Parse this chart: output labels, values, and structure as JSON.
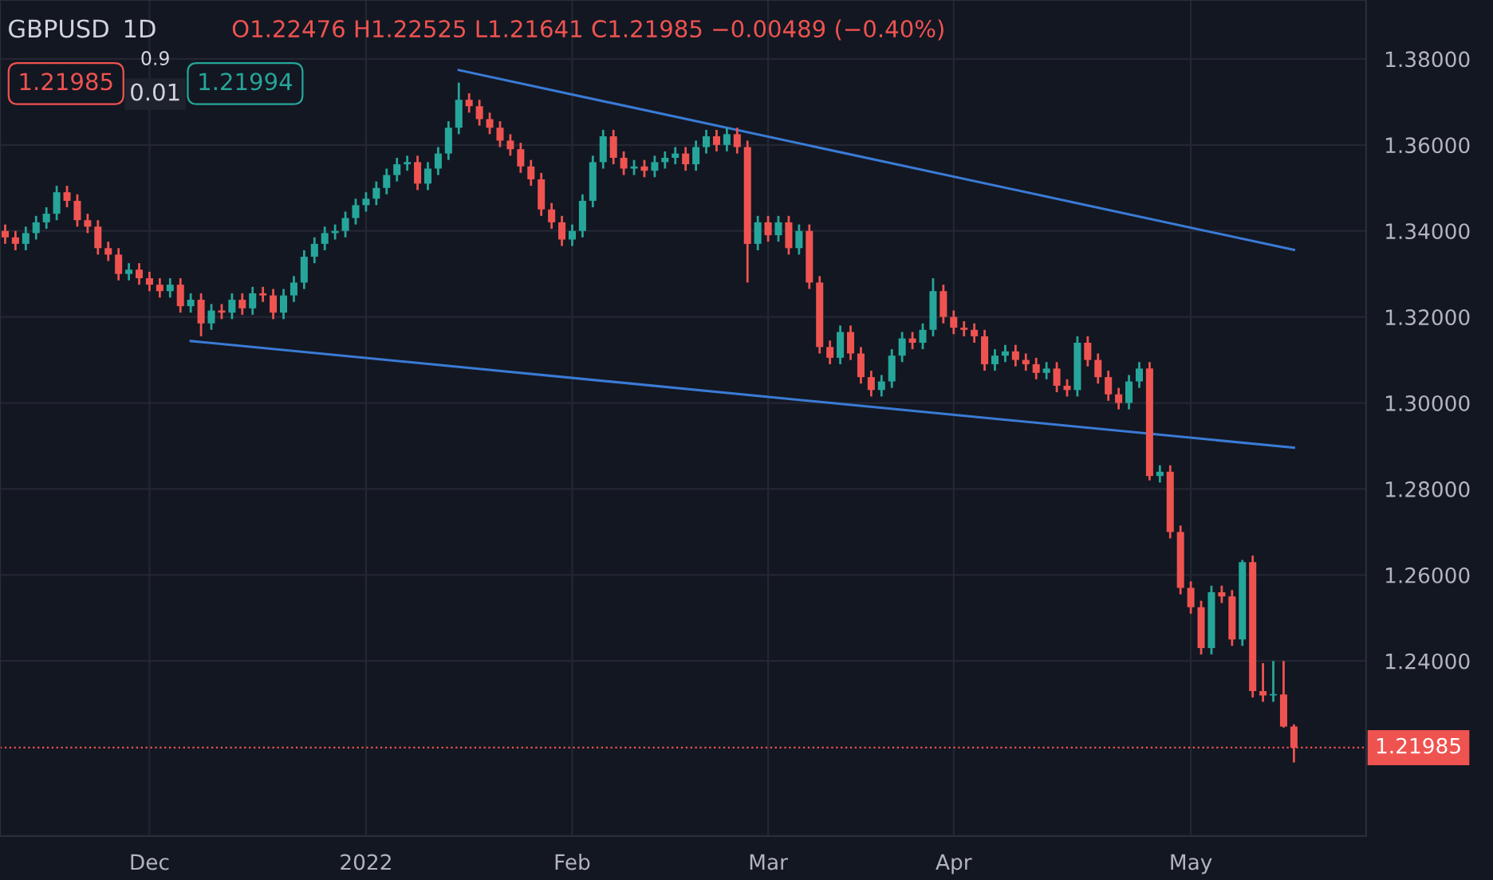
{
  "chart_data": {
    "type": "candlestick",
    "title": "GBPUSD",
    "subtitle": "1D",
    "annotations": [
      "O1.22476 H1.22525 L1.21641 C1.21985 −0.00489 (−0.40%)",
      "1.21985",
      "0.9",
      "0.01",
      "1.21994"
    ],
    "categories": [
      null,
      null,
      null,
      null,
      null,
      null,
      null,
      null,
      null,
      null,
      null,
      null,
      null,
      null,
      "Dec",
      null,
      null,
      null,
      null,
      null,
      null,
      null,
      null,
      null,
      null,
      null,
      null,
      null,
      null,
      null,
      null,
      null,
      null,
      null,
      null,
      "2022",
      null,
      null,
      null,
      null,
      null,
      null,
      null,
      null,
      null,
      null,
      null,
      null,
      null,
      null,
      null,
      null,
      null,
      null,
      null,
      "Feb",
      null,
      null,
      null,
      null,
      null,
      null,
      null,
      null,
      null,
      null,
      null,
      null,
      null,
      null,
      null,
      null,
      null,
      null,
      "Mar",
      null,
      null,
      null,
      null,
      null,
      null,
      null,
      null,
      null,
      null,
      null,
      null,
      null,
      null,
      null,
      null,
      null,
      "Apr",
      null,
      null,
      null,
      null,
      null,
      null,
      null,
      null,
      null,
      null,
      null,
      null,
      null,
      null,
      null,
      null,
      null,
      null,
      null,
      null,
      null,
      null,
      "May",
      null,
      null,
      null,
      null,
      null,
      null,
      null,
      null,
      null,
      null
    ],
    "ohlc": [
      [
        1.34,
        1.3415,
        1.337,
        1.3385
      ],
      [
        1.3385,
        1.34,
        1.3355,
        1.337
      ],
      [
        1.337,
        1.341,
        1.3355,
        1.3395
      ],
      [
        1.3395,
        1.3435,
        1.338,
        1.342
      ],
      [
        1.342,
        1.3455,
        1.3405,
        1.344
      ],
      [
        1.344,
        1.3505,
        1.3425,
        1.349
      ],
      [
        1.349,
        1.3505,
        1.3455,
        1.347
      ],
      [
        1.347,
        1.3485,
        1.341,
        1.3425
      ],
      [
        1.3425,
        1.344,
        1.3395,
        1.341
      ],
      [
        1.341,
        1.3425,
        1.3345,
        1.336
      ],
      [
        1.336,
        1.3375,
        1.333,
        1.3345
      ],
      [
        1.3345,
        1.336,
        1.3285,
        1.33
      ],
      [
        1.33,
        1.3325,
        1.3285,
        1.331
      ],
      [
        1.331,
        1.3325,
        1.3275,
        1.329
      ],
      [
        1.329,
        1.3305,
        1.326,
        1.3275
      ],
      [
        1.3275,
        1.329,
        1.3245,
        1.326
      ],
      [
        1.326,
        1.329,
        1.3245,
        1.3275
      ],
      [
        1.3275,
        1.329,
        1.321,
        1.3225
      ],
      [
        1.3225,
        1.3255,
        1.321,
        1.324
      ],
      [
        1.324,
        1.3255,
        1.3155,
        1.3185
      ],
      [
        1.3185,
        1.323,
        1.317,
        1.3215
      ],
      [
        1.3215,
        1.323,
        1.3195,
        1.321
      ],
      [
        1.321,
        1.3255,
        1.3195,
        1.324
      ],
      [
        1.324,
        1.3255,
        1.3205,
        1.322
      ],
      [
        1.322,
        1.327,
        1.3205,
        1.3255
      ],
      [
        1.3255,
        1.327,
        1.3235,
        1.325
      ],
      [
        1.325,
        1.3265,
        1.3195,
        1.321
      ],
      [
        1.321,
        1.3265,
        1.3195,
        1.325
      ],
      [
        1.325,
        1.3295,
        1.3235,
        1.328
      ],
      [
        1.328,
        1.3355,
        1.3265,
        1.334
      ],
      [
        1.334,
        1.3385,
        1.3325,
        1.337
      ],
      [
        1.337,
        1.341,
        1.3355,
        1.3395
      ],
      [
        1.3395,
        1.3415,
        1.338,
        1.34
      ],
      [
        1.34,
        1.3445,
        1.3385,
        1.343
      ],
      [
        1.343,
        1.3475,
        1.3415,
        1.346
      ],
      [
        1.346,
        1.349,
        1.3445,
        1.3475
      ],
      [
        1.3475,
        1.3515,
        1.346,
        1.35
      ],
      [
        1.35,
        1.3545,
        1.3485,
        1.353
      ],
      [
        1.353,
        1.357,
        1.3515,
        1.3555
      ],
      [
        1.3555,
        1.3575,
        1.354,
        1.356
      ],
      [
        1.356,
        1.3575,
        1.3495,
        1.351
      ],
      [
        1.351,
        1.356,
        1.3495,
        1.3545
      ],
      [
        1.3545,
        1.3595,
        1.353,
        1.358
      ],
      [
        1.358,
        1.3655,
        1.3565,
        1.364
      ],
      [
        1.364,
        1.3745,
        1.3625,
        1.3705
      ],
      [
        1.3705,
        1.372,
        1.3675,
        1.369
      ],
      [
        1.369,
        1.3705,
        1.3645,
        1.366
      ],
      [
        1.366,
        1.3675,
        1.3625,
        1.364
      ],
      [
        1.364,
        1.3655,
        1.3595,
        1.361
      ],
      [
        1.361,
        1.3625,
        1.3575,
        1.359
      ],
      [
        1.359,
        1.3605,
        1.3535,
        1.355
      ],
      [
        1.355,
        1.3565,
        1.3505,
        1.352
      ],
      [
        1.352,
        1.3535,
        1.3435,
        1.345
      ],
      [
        1.345,
        1.3465,
        1.3405,
        1.342
      ],
      [
        1.342,
        1.3435,
        1.3365,
        1.338
      ],
      [
        1.338,
        1.3415,
        1.3365,
        1.34
      ],
      [
        1.34,
        1.3485,
        1.3385,
        1.347
      ],
      [
        1.347,
        1.3575,
        1.3455,
        1.356
      ],
      [
        1.356,
        1.3635,
        1.3545,
        1.362
      ],
      [
        1.362,
        1.3635,
        1.3555,
        1.357
      ],
      [
        1.357,
        1.3585,
        1.353,
        1.3545
      ],
      [
        1.3545,
        1.3565,
        1.353,
        1.355
      ],
      [
        1.355,
        1.3565,
        1.3525,
        1.354
      ],
      [
        1.354,
        1.3575,
        1.3525,
        1.356
      ],
      [
        1.356,
        1.3585,
        1.3545,
        1.357
      ],
      [
        1.357,
        1.3595,
        1.3555,
        1.358
      ],
      [
        1.358,
        1.3595,
        1.354,
        1.3555
      ],
      [
        1.3555,
        1.361,
        1.354,
        1.3595
      ],
      [
        1.3595,
        1.3635,
        1.358,
        1.362
      ],
      [
        1.362,
        1.3635,
        1.3585,
        1.36
      ],
      [
        1.36,
        1.364,
        1.3585,
        1.3625
      ],
      [
        1.3625,
        1.364,
        1.358,
        1.3595
      ],
      [
        1.3595,
        1.361,
        1.328,
        1.337
      ],
      [
        1.337,
        1.3435,
        1.3355,
        1.342
      ],
      [
        1.342,
        1.3435,
        1.3375,
        1.339
      ],
      [
        1.339,
        1.3435,
        1.3375,
        1.342
      ],
      [
        1.342,
        1.3435,
        1.3345,
        1.336
      ],
      [
        1.336,
        1.3415,
        1.3345,
        1.34
      ],
      [
        1.34,
        1.3415,
        1.3265,
        1.328
      ],
      [
        1.328,
        1.3295,
        1.3115,
        1.313
      ],
      [
        1.313,
        1.3145,
        1.309,
        1.3105
      ],
      [
        1.3105,
        1.318,
        1.309,
        1.3165
      ],
      [
        1.3165,
        1.318,
        1.31,
        1.3115
      ],
      [
        1.3115,
        1.313,
        1.3045,
        1.306
      ],
      [
        1.306,
        1.3075,
        1.3015,
        1.303
      ],
      [
        1.303,
        1.3065,
        1.3015,
        1.305
      ],
      [
        1.305,
        1.3125,
        1.3035,
        1.311
      ],
      [
        1.311,
        1.3165,
        1.3095,
        1.315
      ],
      [
        1.315,
        1.3165,
        1.3125,
        1.314
      ],
      [
        1.314,
        1.3185,
        1.3125,
        1.317
      ],
      [
        1.317,
        1.329,
        1.3155,
        1.326
      ],
      [
        1.326,
        1.3275,
        1.3185,
        1.32
      ],
      [
        1.32,
        1.3215,
        1.316,
        1.3175
      ],
      [
        1.3175,
        1.319,
        1.3155,
        1.317
      ],
      [
        1.317,
        1.3185,
        1.314,
        1.3155
      ],
      [
        1.3155,
        1.317,
        1.3075,
        1.309
      ],
      [
        1.309,
        1.3125,
        1.3075,
        1.311
      ],
      [
        1.311,
        1.3135,
        1.3095,
        1.312
      ],
      [
        1.312,
        1.3135,
        1.3085,
        1.31
      ],
      [
        1.31,
        1.3115,
        1.3075,
        1.309
      ],
      [
        1.309,
        1.3105,
        1.3055,
        1.307
      ],
      [
        1.307,
        1.3095,
        1.3055,
        1.308
      ],
      [
        1.308,
        1.3095,
        1.3025,
        1.304
      ],
      [
        1.304,
        1.3055,
        1.3015,
        1.303
      ],
      [
        1.303,
        1.3155,
        1.3015,
        1.314
      ],
      [
        1.314,
        1.3155,
        1.3085,
        1.31
      ],
      [
        1.31,
        1.3115,
        1.3045,
        1.306
      ],
      [
        1.306,
        1.3075,
        1.3005,
        1.302
      ],
      [
        1.302,
        1.3035,
        1.2985,
        1.3
      ],
      [
        1.3,
        1.3065,
        1.2985,
        1.305
      ],
      [
        1.305,
        1.3095,
        1.3035,
        1.308
      ],
      [
        1.308,
        1.3095,
        1.282,
        1.283
      ],
      [
        1.283,
        1.2855,
        1.2815,
        1.284
      ],
      [
        1.284,
        1.2855,
        1.2685,
        1.27
      ],
      [
        1.27,
        1.2715,
        1.2555,
        1.257
      ],
      [
        1.257,
        1.2585,
        1.251,
        1.2525
      ],
      [
        1.2525,
        1.254,
        1.2415,
        1.243
      ],
      [
        1.243,
        1.2575,
        1.2415,
        1.256
      ],
      [
        1.256,
        1.2575,
        1.2535,
        1.255
      ],
      [
        1.255,
        1.2565,
        1.2435,
        1.245
      ],
      [
        1.245,
        1.2635,
        1.2435,
        1.263
      ],
      [
        1.263,
        1.2645,
        1.2315,
        1.233
      ],
      [
        1.233,
        1.2395,
        1.2305,
        1.232
      ],
      [
        1.232,
        1.24,
        1.2305,
        1.2322
      ],
      [
        1.2322,
        1.24,
        1.2245,
        1.22474
      ],
      [
        1.22476,
        1.22525,
        1.21641,
        1.21985
      ]
    ],
    "series": [
      {
        "type": "line",
        "color": "#3a7bd5",
        "values": [
          null,
          null,
          null,
          null,
          null,
          null,
          null,
          null,
          null,
          null,
          null,
          null,
          null,
          null,
          null,
          null,
          null,
          null,
          null,
          null,
          null,
          null,
          null,
          null,
          null,
          null,
          null,
          null,
          null,
          null,
          null,
          null,
          null,
          null,
          null,
          null,
          null,
          null,
          null,
          null,
          null,
          null,
          null,
          null,
          1.3774,
          null,
          null,
          null,
          null,
          null,
          null,
          null,
          null,
          null,
          null,
          null,
          null,
          null,
          null,
          null,
          null,
          null,
          null,
          null,
          null,
          null,
          null,
          null,
          null,
          null,
          null,
          null,
          null,
          null,
          null,
          null,
          null,
          null,
          null,
          null,
          null,
          null,
          null,
          null,
          null,
          null,
          null,
          null,
          null,
          null,
          null,
          null,
          null,
          null,
          null,
          null,
          null,
          null,
          null,
          null,
          null,
          null,
          null,
          null,
          null,
          null,
          null,
          null,
          null,
          null,
          null,
          null,
          null,
          null,
          null,
          null,
          null,
          null,
          null,
          null,
          null,
          null,
          null,
          null,
          null,
          1.3356
        ]
      },
      {
        "type": "line",
        "color": "#3a7bd5",
        "values": [
          null,
          null,
          null,
          null,
          null,
          null,
          null,
          null,
          null,
          null,
          null,
          null,
          null,
          null,
          null,
          null,
          null,
          null,
          1.3144,
          null,
          null,
          null,
          null,
          null,
          null,
          null,
          null,
          null,
          null,
          null,
          null,
          null,
          null,
          null,
          null,
          null,
          null,
          null,
          null,
          null,
          null,
          null,
          null,
          null,
          null,
          null,
          null,
          null,
          null,
          null,
          null,
          null,
          null,
          null,
          null,
          null,
          null,
          null,
          null,
          null,
          null,
          null,
          null,
          null,
          null,
          null,
          null,
          null,
          null,
          null,
          null,
          null,
          null,
          null,
          null,
          null,
          null,
          null,
          null,
          null,
          null,
          null,
          null,
          null,
          null,
          null,
          null,
          null,
          null,
          null,
          null,
          null,
          null,
          null,
          null,
          null,
          null,
          null,
          null,
          null,
          null,
          null,
          null,
          null,
          null,
          null,
          null,
          null,
          null,
          null,
          null,
          null,
          null,
          null,
          null,
          null,
          null,
          null,
          null,
          null,
          null,
          null,
          null,
          null,
          null,
          1.2896
        ]
      }
    ],
    "ylim": [
      1.1993,
      1.3937
    ],
    "yticks": [
      {
        "value": 1.24,
        "label": "1.24000"
      },
      {
        "value": 1.26,
        "label": "1.26000"
      },
      {
        "value": 1.28,
        "label": "1.28000"
      },
      {
        "value": 1.3,
        "label": "1.30000"
      },
      {
        "value": 1.32,
        "label": "1.32000"
      },
      {
        "value": 1.34,
        "label": "1.34000"
      },
      {
        "value": 1.36,
        "label": "1.36000"
      },
      {
        "value": 1.38,
        "label": "1.38000"
      }
    ],
    "grid": true,
    "ref_lines": [
      {
        "axis": "y",
        "value": 1.21985,
        "label": "1.21985",
        "color": "#ef5350",
        "line_style": "dotted"
      }
    ]
  }
}
